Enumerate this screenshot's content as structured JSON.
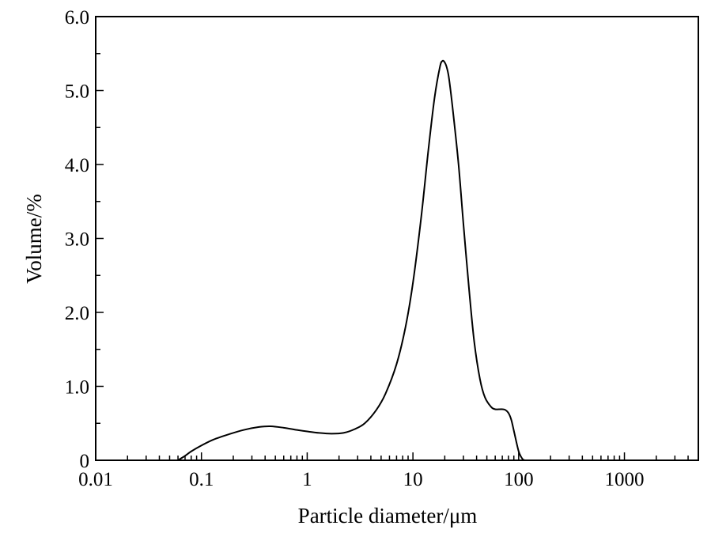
{
  "chart_data": {
    "type": "line",
    "xlabel": "Particle diameter/μm",
    "ylabel": "Volume/%",
    "x_scale": "log",
    "xlim": [
      0.01,
      5000
    ],
    "ylim": [
      0,
      6.0
    ],
    "x_ticks": [
      {
        "value": 0.01,
        "label": "0.01"
      },
      {
        "value": 0.1,
        "label": "0.1"
      },
      {
        "value": 1,
        "label": "1"
      },
      {
        "value": 10,
        "label": "10"
      },
      {
        "value": 100,
        "label": "100"
      },
      {
        "value": 1000,
        "label": "1000"
      }
    ],
    "y_ticks": [
      {
        "value": 0,
        "label": "0"
      },
      {
        "value": 1.0,
        "label": "1.0"
      },
      {
        "value": 2.0,
        "label": "2.0"
      },
      {
        "value": 3.0,
        "label": "3.0"
      },
      {
        "value": 4.0,
        "label": "4.0"
      },
      {
        "value": 5.0,
        "label": "5.0"
      },
      {
        "value": 6.0,
        "label": "6.0"
      }
    ],
    "y_minor_step": 0.5,
    "grid": false,
    "series": [
      {
        "x": [
          0.06,
          0.07,
          0.08,
          0.1,
          0.13,
          0.18,
          0.25,
          0.35,
          0.45,
          0.6,
          0.8,
          1.0,
          1.3,
          1.7,
          2.2,
          2.8,
          3.5,
          4.5,
          5.5,
          7,
          8.5,
          10,
          12,
          14,
          16,
          18,
          19,
          20,
          21,
          22,
          24,
          27,
          30,
          34,
          38,
          43,
          48,
          55,
          60,
          65,
          70,
          75,
          80,
          85,
          90,
          95,
          100,
          105,
          110,
          115
        ],
        "y": [
          0.0,
          0.06,
          0.12,
          0.2,
          0.28,
          0.35,
          0.41,
          0.45,
          0.46,
          0.44,
          0.41,
          0.39,
          0.37,
          0.36,
          0.37,
          0.42,
          0.5,
          0.68,
          0.9,
          1.3,
          1.8,
          2.4,
          3.3,
          4.2,
          4.9,
          5.32,
          5.4,
          5.38,
          5.3,
          5.15,
          4.7,
          4.0,
          3.2,
          2.3,
          1.6,
          1.1,
          0.85,
          0.72,
          0.69,
          0.69,
          0.69,
          0.68,
          0.64,
          0.55,
          0.4,
          0.25,
          0.12,
          0.05,
          0.01,
          0.0
        ],
        "color": "#000000"
      }
    ]
  }
}
